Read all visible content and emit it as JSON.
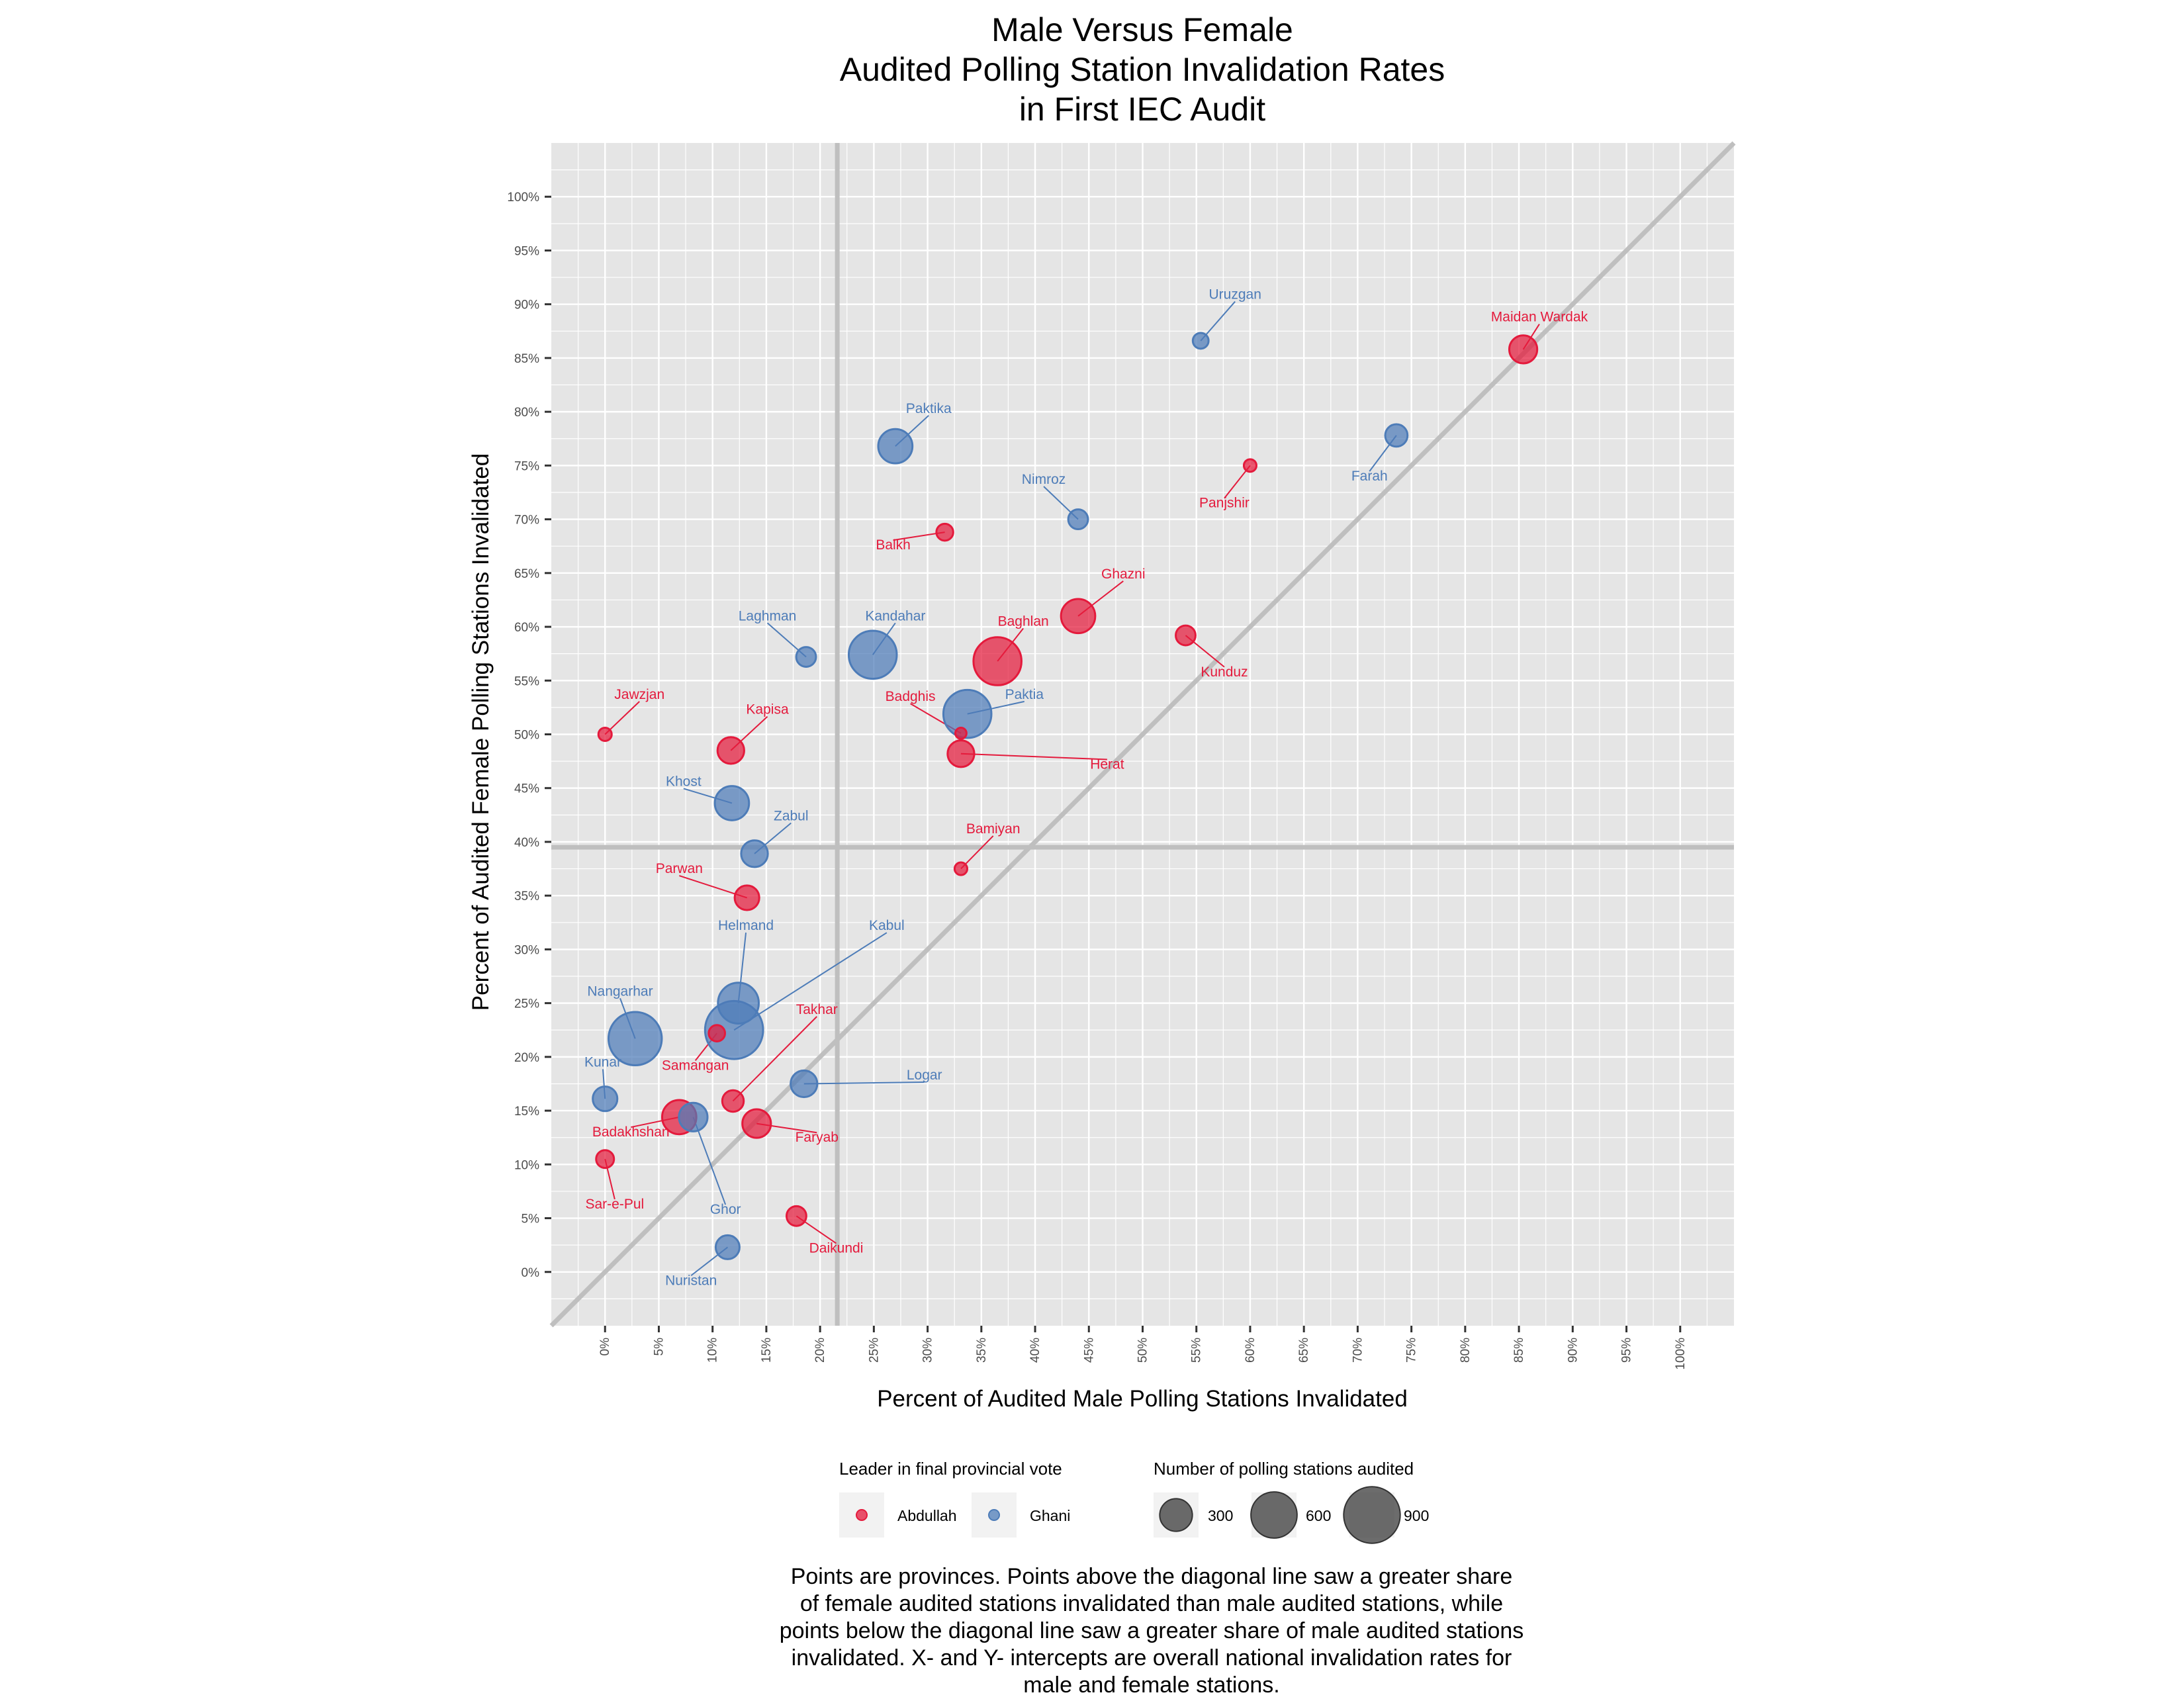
{
  "colors": {
    "abdullah": "#e41a3c",
    "ghani": "#4d7cb8",
    "panel": "#e5e5e5",
    "grid": "#ffffff",
    "reference_lines": "#bfbfbf"
  },
  "chart_data": {
    "type": "scatter",
    "title": [
      "Male Versus Female",
      "Audited Polling Station Invalidation Rates",
      "in First IEC Audit"
    ],
    "xlabel": "Percent of Audited Male Polling Stations Invalidated",
    "ylabel": "Percent of Audited Female Polling Stations Invalidated",
    "xlim": [
      -5,
      105
    ],
    "ylim": [
      -5,
      105
    ],
    "x_ticks": [
      "0%",
      "5%",
      "10%",
      "15%",
      "20%",
      "25%",
      "30%",
      "35%",
      "40%",
      "45%",
      "50%",
      "55%",
      "60%",
      "65%",
      "70%",
      "75%",
      "80%",
      "85%",
      "90%",
      "95%",
      "100%"
    ],
    "y_ticks": [
      "0%",
      "5%",
      "10%",
      "15%",
      "20%",
      "25%",
      "30%",
      "35%",
      "40%",
      "45%",
      "50%",
      "55%",
      "60%",
      "65%",
      "70%",
      "75%",
      "80%",
      "85%",
      "90%",
      "95%",
      "100%"
    ],
    "grid": true,
    "diagonal": "y = x",
    "national_rates": {
      "male_pct": 21.6,
      "female_pct": 39.5
    },
    "legend_position": "bottom",
    "legend_color_title": "Leader in final provincial vote",
    "legend_color_items": [
      {
        "name": "Abdullah",
        "color": "#e41a3c"
      },
      {
        "name": "Ghani",
        "color": "#4d7cb8"
      }
    ],
    "legend_size_title": "Number of polling stations audited",
    "legend_size_items": [
      {
        "label": "300",
        "value": 300
      },
      {
        "label": "600",
        "value": 600
      },
      {
        "label": "900",
        "value": 900
      }
    ],
    "points": [
      {
        "name": "Maidan Wardak",
        "leader": "Abdullah",
        "x": 85.4,
        "y": 85.8,
        "size": 220,
        "lx": 86.9,
        "ly": 88.4
      },
      {
        "name": "Uruzgan",
        "leader": "Ghani",
        "x": 55.4,
        "y": 86.6,
        "size": 70,
        "lx": 58.6,
        "ly": 90.5
      },
      {
        "name": "Farah",
        "leader": "Ghani",
        "x": 73.6,
        "y": 77.8,
        "size": 140,
        "lx": 71.1,
        "ly": 73.6
      },
      {
        "name": "Panjshir",
        "leader": "Abdullah",
        "x": 60.0,
        "y": 75.0,
        "size": 45,
        "lx": 57.6,
        "ly": 71.1
      },
      {
        "name": "Paktika",
        "leader": "Ghani",
        "x": 27.0,
        "y": 76.8,
        "size": 330,
        "lx": 30.1,
        "ly": 79.9
      },
      {
        "name": "Nimroz",
        "leader": "Ghani",
        "x": 44.0,
        "y": 70.0,
        "size": 110,
        "lx": 40.8,
        "ly": 73.3
      },
      {
        "name": "Balkh",
        "leader": "Abdullah",
        "x": 31.6,
        "y": 68.8,
        "size": 80,
        "lx": 26.8,
        "ly": 67.2
      },
      {
        "name": "Ghazni",
        "leader": "Abdullah",
        "x": 44.0,
        "y": 61.0,
        "size": 330,
        "lx": 48.2,
        "ly": 64.5
      },
      {
        "name": "Kunduz",
        "leader": "Abdullah",
        "x": 54.0,
        "y": 59.2,
        "size": 110,
        "lx": 57.6,
        "ly": 55.4
      },
      {
        "name": "Laghman",
        "leader": "Ghani",
        "x": 18.7,
        "y": 57.2,
        "size": 110,
        "lx": 15.1,
        "ly": 60.6
      },
      {
        "name": "Kandahar",
        "leader": "Ghani",
        "x": 24.9,
        "y": 57.4,
        "size": 650,
        "lx": 27.0,
        "ly": 60.6
      },
      {
        "name": "Baghlan",
        "leader": "Abdullah",
        "x": 36.5,
        "y": 56.8,
        "size": 650,
        "lx": 38.9,
        "ly": 60.1
      },
      {
        "name": "Paktia",
        "leader": "Ghani",
        "x": 33.7,
        "y": 51.9,
        "size": 650,
        "lx": 39.0,
        "ly": 53.3
      },
      {
        "name": "Badghis",
        "leader": "Abdullah",
        "x": 33.1,
        "y": 50.1,
        "size": 35,
        "lx": 28.4,
        "ly": 53.1
      },
      {
        "name": "Herat",
        "leader": "Abdullah",
        "x": 33.1,
        "y": 48.2,
        "size": 200,
        "lx": 46.7,
        "ly": 46.8
      },
      {
        "name": "Jawzjan",
        "leader": "Abdullah",
        "x": 0.0,
        "y": 50.0,
        "size": 50,
        "lx": 3.2,
        "ly": 53.3
      },
      {
        "name": "Kapisa",
        "leader": "Abdullah",
        "x": 11.7,
        "y": 48.5,
        "size": 200,
        "lx": 15.1,
        "ly": 51.9
      },
      {
        "name": "Khost",
        "leader": "Ghani",
        "x": 11.8,
        "y": 43.6,
        "size": 330,
        "lx": 7.3,
        "ly": 45.2
      },
      {
        "name": "Zabul",
        "leader": "Ghani",
        "x": 13.9,
        "y": 38.9,
        "size": 200,
        "lx": 17.3,
        "ly": 42.0
      },
      {
        "name": "Parwan",
        "leader": "Abdullah",
        "x": 13.2,
        "y": 34.8,
        "size": 170,
        "lx": 6.9,
        "ly": 37.1
      },
      {
        "name": "Bamiyan",
        "leader": "Abdullah",
        "x": 33.1,
        "y": 37.5,
        "size": 45,
        "lx": 36.1,
        "ly": 40.8
      },
      {
        "name": "Helmand",
        "leader": "Ghani",
        "x": 12.4,
        "y": 25.0,
        "size": 470,
        "lx": 13.1,
        "ly": 31.8
      },
      {
        "name": "Kabul",
        "leader": "Ghani",
        "x": 12.0,
        "y": 22.5,
        "size": 950,
        "lx": 26.2,
        "ly": 31.8
      },
      {
        "name": "Nangarhar",
        "leader": "Ghani",
        "x": 2.8,
        "y": 21.7,
        "size": 800,
        "lx": 1.4,
        "ly": 25.7
      },
      {
        "name": "Takhar",
        "leader": "Abdullah",
        "x": 11.9,
        "y": 15.9,
        "size": 130,
        "lx": 19.7,
        "ly": 24.0
      },
      {
        "name": "Samangan",
        "leader": "Abdullah",
        "x": 10.4,
        "y": 22.2,
        "size": 75,
        "lx": 8.4,
        "ly": 18.8
      },
      {
        "name": "Kunar",
        "leader": "Ghani",
        "x": 0.0,
        "y": 16.1,
        "size": 170,
        "lx": -0.2,
        "ly": 19.1
      },
      {
        "name": "Logar",
        "leader": "Ghani",
        "x": 18.5,
        "y": 17.5,
        "size": 200,
        "lx": 29.7,
        "ly": 17.9
      },
      {
        "name": "Badakhshan",
        "leader": "Abdullah",
        "x": 6.9,
        "y": 14.4,
        "size": 330,
        "lx": 2.4,
        "ly": 12.6
      },
      {
        "name": "Ghor",
        "leader": "Ghani",
        "x": 8.2,
        "y": 14.4,
        "size": 230,
        "lx": 11.2,
        "ly": 5.4
      },
      {
        "name": "Faryab",
        "leader": "Abdullah",
        "x": 14.1,
        "y": 13.8,
        "size": 230,
        "lx": 19.7,
        "ly": 12.1
      },
      {
        "name": "Sar-e-Pul",
        "leader": "Abdullah",
        "x": 0.0,
        "y": 10.5,
        "size": 90,
        "lx": 0.9,
        "ly": 5.9
      },
      {
        "name": "Daikundi",
        "leader": "Abdullah",
        "x": 17.8,
        "y": 5.2,
        "size": 110,
        "lx": 21.5,
        "ly": 1.8
      },
      {
        "name": "Nuristan",
        "leader": "Ghani",
        "x": 11.4,
        "y": 2.3,
        "size": 160,
        "lx": 8.0,
        "ly": -1.2
      }
    ]
  },
  "caption": "Points are provinces. Points above the diagonal line saw a greater share\nof female audited stations invalidated than male audited stations, while\npoints below the diagonal line saw a greater share of male audited stations\ninvalidated. X- and Y- intercepts are overall national invalidation rates for\nmale and female stations."
}
